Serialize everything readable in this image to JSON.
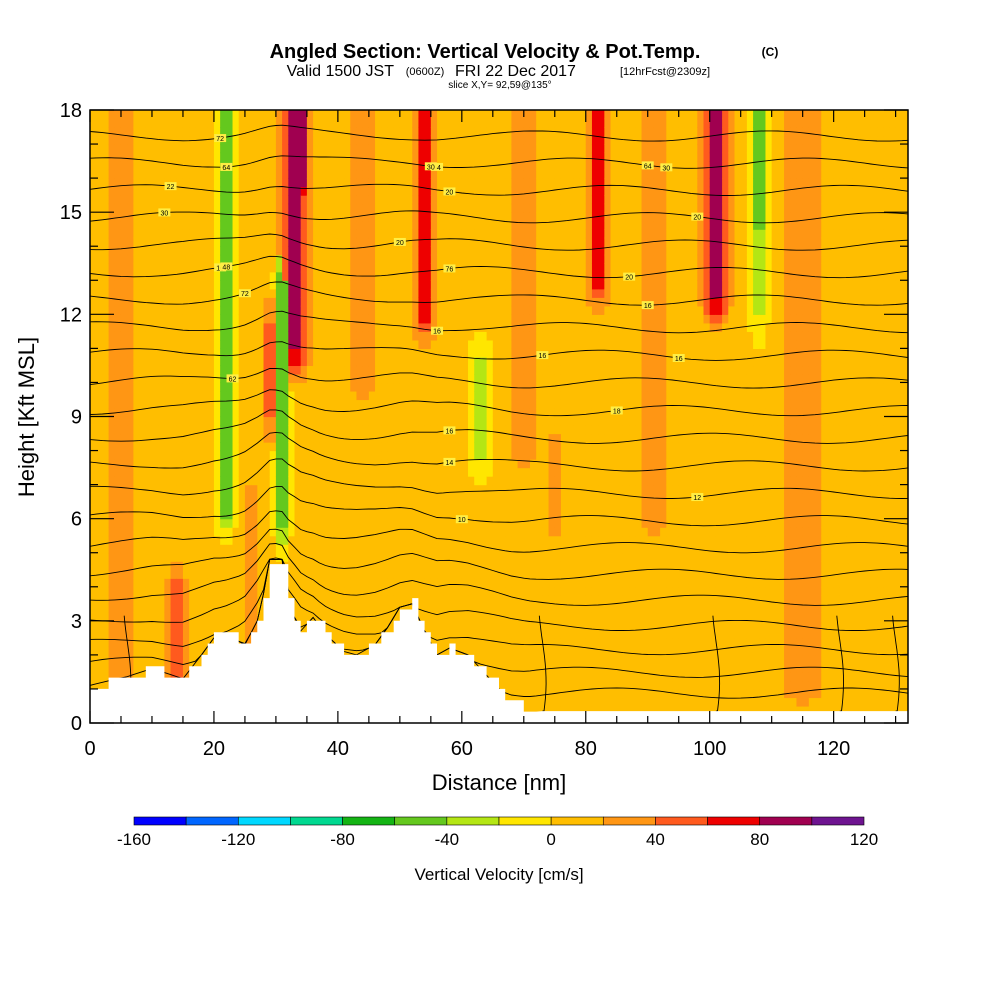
{
  "header": {
    "title": "Angled Section: Vertical Velocity & Pot.Temp.",
    "title_unit": "(C)",
    "valid_prefix": "Valid 1500 JST",
    "valid_zulu": "(0600Z)",
    "valid_date": "FRI 22 Dec 2017",
    "valid_fcst": "[12hrFcst@2309z]",
    "slice": "slice X,Y= 92,59@135°"
  },
  "chart_data": {
    "type": "heatmap",
    "xlabel": "Distance [nm]",
    "ylabel": "Height [Kft MSL]",
    "xlim": [
      0,
      132
    ],
    "ylim": [
      0,
      18
    ],
    "x_ticks": [
      0,
      20,
      40,
      60,
      80,
      100,
      120
    ],
    "y_ticks": [
      0,
      3,
      6,
      9,
      12,
      15,
      18
    ],
    "colorbar": {
      "label": "Vertical Velocity [cm/s]",
      "ticks": [
        -160,
        -120,
        -80,
        -40,
        0,
        40,
        80,
        120
      ],
      "bins": [
        -160,
        -140,
        -120,
        -100,
        -80,
        -60,
        -40,
        -20,
        0,
        20,
        40,
        60,
        80,
        100,
        120
      ],
      "colors": [
        "#0000ff",
        "#0066ff",
        "#00d8ff",
        "#00d890",
        "#14b414",
        "#64c81e",
        "#b4e614",
        "#ffe600",
        "#ffbe00",
        "#ff9614",
        "#ff5a1e",
        "#ee0000",
        "#a00050",
        "#6e1490"
      ]
    },
    "background_value": 5,
    "velocity_features": [
      {
        "x": 22,
        "y0": 6.5,
        "y1": 18,
        "w": 1.4,
        "v": -60
      },
      {
        "x": 31,
        "y0": 6.0,
        "y1": 13,
        "w": 1.0,
        "v": -60
      },
      {
        "x": 29,
        "y0": 9,
        "y1": 11.8,
        "w": 1.0,
        "v": 50
      },
      {
        "x": 33,
        "y0": 11,
        "y1": 18,
        "w": 2.2,
        "v": 85
      },
      {
        "x": 34,
        "y0": 16,
        "y1": 18,
        "w": 1.0,
        "v": 110
      },
      {
        "x": 54,
        "y0": 12,
        "y1": 18,
        "w": 1.8,
        "v": 70
      },
      {
        "x": 63,
        "y0": 8,
        "y1": 10.5,
        "w": 1.6,
        "v": -25
      },
      {
        "x": 82,
        "y0": 13,
        "y1": 18,
        "w": 2.0,
        "v": 65
      },
      {
        "x": 101,
        "y0": 12.5,
        "y1": 18,
        "w": 2.0,
        "v": 85
      },
      {
        "x": 101,
        "y0": 15.5,
        "y1": 18,
        "w": 1.0,
        "v": 105
      },
      {
        "x": 108,
        "y0": 15,
        "y1": 18,
        "w": 1.4,
        "v": -60
      },
      {
        "x": 108,
        "y0": 12,
        "y1": 15,
        "w": 1.2,
        "v": -25
      },
      {
        "x": 26,
        "y0": 2.0,
        "y1": 6.5,
        "w": 2.5,
        "v": 25
      },
      {
        "x": 44,
        "y0": 10,
        "y1": 18,
        "w": 4.0,
        "v": 25
      },
      {
        "x": 70,
        "y0": 8,
        "y1": 18,
        "w": 4.0,
        "v": 25
      },
      {
        "x": 91,
        "y0": 6,
        "y1": 18,
        "w": 4.0,
        "v": 25
      },
      {
        "x": 115,
        "y0": 1,
        "y1": 18,
        "w": 5.0,
        "v": 25
      },
      {
        "x": 5,
        "y0": 0.5,
        "y1": 18,
        "w": 4.0,
        "v": 25
      },
      {
        "x": 14,
        "y0": 1,
        "y1": 4,
        "w": 1.6,
        "v": 45
      },
      {
        "x": 75,
        "y0": 6,
        "y1": 8,
        "w": 2.0,
        "v": 25
      }
    ],
    "terrain": [
      [
        0,
        1.0
      ],
      [
        5,
        1.3
      ],
      [
        10,
        1.6
      ],
      [
        15,
        1.3
      ],
      [
        18,
        2.0
      ],
      [
        20,
        2.5
      ],
      [
        23,
        2.5
      ],
      [
        25,
        2.3
      ],
      [
        27,
        3.0
      ],
      [
        28,
        3.8
      ],
      [
        29,
        4.8
      ],
      [
        31,
        4.8
      ],
      [
        32,
        3.5
      ],
      [
        34,
        2.7
      ],
      [
        36,
        3.1
      ],
      [
        38,
        2.6
      ],
      [
        41,
        2.1
      ],
      [
        43,
        2.0
      ],
      [
        46,
        2.3
      ],
      [
        48,
        2.8
      ],
      [
        50,
        3.4
      ],
      [
        52,
        3.5
      ],
      [
        54,
        2.7
      ],
      [
        56,
        2.0
      ],
      [
        58,
        2.2
      ],
      [
        61,
        2.0
      ],
      [
        64,
        1.4
      ],
      [
        68,
        0.6
      ],
      [
        70,
        0.4
      ]
    ],
    "isentrope_levels": [
      -4,
      -2,
      0,
      2,
      4,
      6,
      8,
      10,
      12,
      14,
      16,
      18,
      20,
      22,
      24,
      26,
      28,
      30,
      32,
      34,
      36,
      38
    ],
    "isentrope_labels": [
      {
        "text": "10",
        "x": 60,
        "level": 10
      },
      {
        "text": "12",
        "x": 98,
        "level": 12
      },
      {
        "text": "16",
        "x": 58,
        "level": 16
      },
      {
        "text": "18",
        "x": 85,
        "level": 18
      },
      {
        "text": "14",
        "x": 58,
        "level": 14
      },
      {
        "text": "62",
        "x": 23,
        "level": 20
      },
      {
        "text": "16",
        "x": 95,
        "level": 22
      },
      {
        "text": "16",
        "x": 73,
        "level": 22
      },
      {
        "text": "16",
        "x": 56,
        "level": 24
      },
      {
        "text": "72",
        "x": 25,
        "level": 26
      },
      {
        "text": "16",
        "x": 90,
        "level": 26
      },
      {
        "text": "10",
        "x": 21,
        "level": 27
      },
      {
        "text": "76",
        "x": 58,
        "level": 28
      },
      {
        "text": "20",
        "x": 87,
        "level": 28
      },
      {
        "text": "48",
        "x": 22,
        "level": 28
      },
      {
        "text": "20",
        "x": 50,
        "level": 30
      },
      {
        "text": "30",
        "x": 12,
        "level": 31
      },
      {
        "text": "20",
        "x": 98,
        "level": 32
      },
      {
        "text": "20",
        "x": 58,
        "level": 33
      },
      {
        "text": "22",
        "x": 13,
        "level": 34
      },
      {
        "text": "64",
        "x": 56,
        "level": 35
      },
      {
        "text": "64",
        "x": 22,
        "level": 35
      },
      {
        "text": "64",
        "x": 90,
        "level": 35
      },
      {
        "text": "30",
        "x": 55,
        "level": 36
      },
      {
        "text": "30",
        "x": 93,
        "level": 36
      },
      {
        "text": "72",
        "x": 21,
        "level": 37
      }
    ]
  }
}
